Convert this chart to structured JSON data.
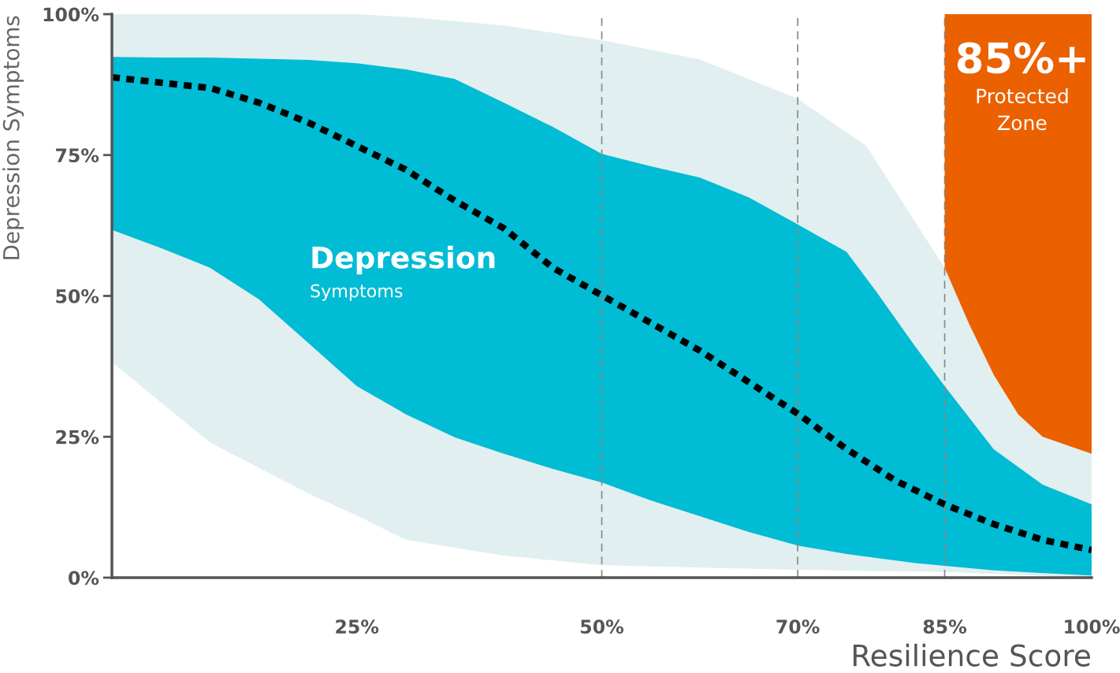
{
  "chart_data": {
    "type": "line",
    "xlabel": "Resilience Score",
    "ylabel": "Depression Symptoms",
    "xlim": [
      0,
      100
    ],
    "ylim": [
      0,
      100
    ],
    "xticks": [
      {
        "value": 25,
        "label": "25%"
      },
      {
        "value": 50,
        "label": "50%"
      },
      {
        "value": 70,
        "label": "70%"
      },
      {
        "value": 85,
        "label": "85%"
      },
      {
        "value": 100,
        "label": "100%"
      }
    ],
    "yticks": [
      {
        "value": 0,
        "label": "0%"
      },
      {
        "value": 25,
        "label": "25%"
      },
      {
        "value": 50,
        "label": "50%"
      },
      {
        "value": 75,
        "label": "75%"
      },
      {
        "value": 100,
        "label": "100%"
      }
    ],
    "grid": false,
    "legend": false,
    "series": [
      {
        "color": "#e2eff0",
        "x": [
          0,
          10,
          20,
          25,
          30,
          40,
          50,
          60,
          70,
          77,
          85,
          100
        ],
        "values": [
          null,
          null,
          null,
          null,
          null,
          null,
          null,
          null,
          null,
          null,
          null,
          null
        ],
        "upper": [
          100,
          100,
          100,
          100,
          99.5,
          98,
          95.4,
          92,
          85,
          76.6,
          55,
          22
        ],
        "lower": [
          38.2,
          24,
          15,
          11,
          6.7,
          3.9,
          2.2,
          1.8,
          1.4,
          1.2,
          1,
          0
        ]
      },
      {
        "color": "#00bcd4",
        "x": [
          0,
          5,
          10,
          15,
          20,
          25,
          30,
          35,
          40,
          45,
          50,
          55,
          60,
          65,
          70,
          75,
          78,
          82,
          85,
          90,
          95,
          100
        ],
        "values": [
          null,
          null,
          null,
          null,
          null,
          null,
          null,
          null,
          null,
          null,
          null,
          null,
          null,
          null,
          null,
          null,
          null,
          null,
          null,
          null,
          null,
          null
        ],
        "upper": [
          92.4,
          92.3,
          92.3,
          92.1,
          91.9,
          91.3,
          90.2,
          88.5,
          84.3,
          80,
          75.2,
          73,
          71,
          67.5,
          62.7,
          57.8,
          50.8,
          41,
          34,
          22.8,
          16.5,
          13
        ],
        "lower": [
          61.7,
          58.5,
          55,
          49.4,
          41.7,
          34,
          29,
          24.9,
          22,
          19.3,
          16.9,
          13.7,
          10.9,
          8.1,
          5.7,
          4.2,
          3.5,
          2.6,
          2.1,
          1.3,
          0.8,
          0.4
        ]
      },
      {
        "color": "#000000",
        "line_style": "dotted",
        "x": [
          0,
          10,
          15,
          20,
          25,
          30,
          35,
          40,
          45,
          50,
          55,
          60,
          65,
          70,
          75,
          80,
          85,
          90,
          95,
          100
        ],
        "values": [
          88.8,
          86.9,
          84.3,
          80.8,
          76.6,
          72.4,
          66.9,
          62,
          55,
          50.1,
          45.2,
          40.3,
          34.7,
          29.1,
          22.8,
          17.2,
          13,
          9.5,
          6.7,
          4.9
        ]
      },
      {
        "color": "#eb6100",
        "x": [
          85,
          87.5,
          90,
          92.5,
          95,
          100
        ],
        "values": [
          null,
          null,
          null,
          null,
          null,
          null
        ],
        "upper": [
          100,
          100,
          100,
          100,
          100,
          100
        ],
        "lower": [
          55,
          45,
          36,
          29,
          25,
          22
        ]
      }
    ],
    "ref_lines": [
      {
        "axis": "x",
        "value": 50,
        "color": "#888888",
        "line_style": "dashed"
      },
      {
        "axis": "x",
        "value": 70,
        "color": "#888888",
        "line_style": "dashed"
      },
      {
        "axis": "x",
        "value": 85,
        "color": "#888888",
        "line_style": "dashed"
      }
    ],
    "annotations": [
      "Depression",
      "Symptoms",
      "85%+",
      "Protected",
      "Zone"
    ]
  }
}
